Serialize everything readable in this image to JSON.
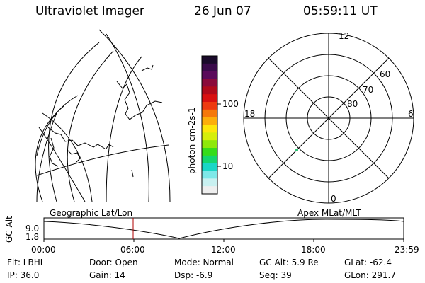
{
  "header": {
    "instrument": "Ultraviolet Imager",
    "date": "26 Jun 07",
    "time": "05:59:11 UT"
  },
  "colorbar": {
    "unit_label": "photon cm-2s-1",
    "ticks": [
      "100",
      "10"
    ],
    "colors": [
      "#1a0a2a",
      "#3a0a4a",
      "#5a0a5a",
      "#8a0a3a",
      "#b00a1a",
      "#d81010",
      "#ee3a10",
      "#f5780a",
      "#fcae0a",
      "#fde60a",
      "#d6ee0a",
      "#8ee80a",
      "#36dc1a",
      "#14d66e",
      "#1ad6c6",
      "#7ee8e8",
      "#c8f0f0",
      "#eeeeee"
    ]
  },
  "polar_plot": {
    "mlt_labels": {
      "top": "12",
      "left": "18",
      "right": "6",
      "bottom": "0"
    },
    "lat_labels": [
      "60",
      "70",
      "80"
    ]
  },
  "timeline": {
    "left_title": "Geographic Lat/Lon",
    "right_title": "Apex MLat/MLT",
    "axis_label": "GC Alt",
    "y_ticks": [
      "9.0",
      "1.8"
    ],
    "x_ticks": [
      "00:00",
      "06:00",
      "12:00",
      "18:00",
      "23:59"
    ],
    "current_marker_color": "#b00000"
  },
  "info": {
    "flt": "Flt: LBHL",
    "door": "Door: Open",
    "mode": "Mode: Normal",
    "gcalt": "GC Alt: 5.9 Re",
    "glat": "GLat: -62.4",
    "ip": "IP: 36.0",
    "gain": "Gain: 14",
    "dsp": "Dsp:    -6.9",
    "seq": "Seq: 39",
    "glon": "GLon: 291.7"
  }
}
